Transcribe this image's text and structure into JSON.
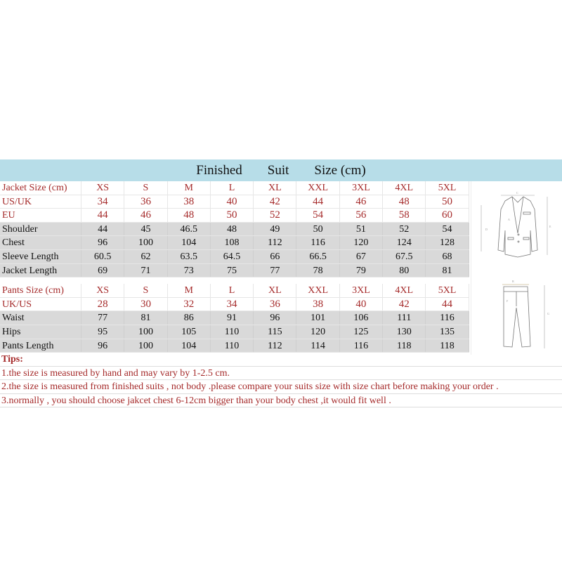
{
  "title": [
    "Finished",
    "Suit",
    "Size (cm)"
  ],
  "sizes": [
    "XS",
    "S",
    "M",
    "L",
    "XL",
    "XXL",
    "3XL",
    "4XL",
    "5XL"
  ],
  "jacket": {
    "header_label": "Jacket Size (cm)",
    "rows": [
      {
        "label": "US/UK",
        "values": [
          "34",
          "36",
          "38",
          "40",
          "42",
          "44",
          "46",
          "48",
          "50"
        ],
        "style": "red"
      },
      {
        "label": "EU",
        "values": [
          "44",
          "46",
          "48",
          "50",
          "52",
          "54",
          "56",
          "58",
          "60"
        ],
        "style": "red"
      },
      {
        "label": "Shoulder",
        "values": [
          "44",
          "45",
          "46.5",
          "48",
          "49",
          "50",
          "51",
          "52",
          "54"
        ],
        "style": "gray"
      },
      {
        "label": "Chest",
        "values": [
          "96",
          "100",
          "104",
          "108",
          "112",
          "116",
          "120",
          "124",
          "128"
        ],
        "style": "gray"
      },
      {
        "label": "Sleeve Length",
        "values": [
          "60.5",
          "62",
          "63.5",
          "64.5",
          "66",
          "66.5",
          "67",
          "67.5",
          "68"
        ],
        "style": "gray"
      },
      {
        "label": "Jacket Length",
        "values": [
          "69",
          "71",
          "73",
          "75",
          "77",
          "78",
          "79",
          "80",
          "81"
        ],
        "style": "gray"
      }
    ]
  },
  "pants": {
    "header_label": "Pants Size (cm)",
    "rows": [
      {
        "label": "UK/US",
        "values": [
          "28",
          "30",
          "32",
          "34",
          "36",
          "38",
          "40",
          "42",
          "44"
        ],
        "style": "red"
      },
      {
        "label": "Waist",
        "values": [
          "77",
          "81",
          "86",
          "91",
          "96",
          "101",
          "106",
          "111",
          "116"
        ],
        "style": "gray"
      },
      {
        "label": "Hips",
        "values": [
          "95",
          "100",
          "105",
          "110",
          "115",
          "120",
          "125",
          "130",
          "135"
        ],
        "style": "gray"
      },
      {
        "label": "Pants Length",
        "values": [
          "96",
          "100",
          "104",
          "110",
          "112",
          "114",
          "116",
          "118",
          "118"
        ],
        "style": "gray"
      }
    ]
  },
  "tips": {
    "heading": "Tips:",
    "lines": [
      "1.the size is measured by hand and may vary by 1-2.5 cm.",
      "2.the size is measured from finished suits , not body .please compare your suits size with size chart before making your order .",
      "3.normally , you should choose jakcet chest 6-12cm bigger than your body chest ,it would fit well ."
    ]
  },
  "diagram_labels": {
    "jacket": [
      "C",
      "A",
      "D",
      "E"
    ],
    "pants": [
      "B",
      "F",
      "G"
    ]
  },
  "colors": {
    "title_band": "#b7dde8",
    "red_text": "#a52a2a",
    "gray_row": "#d9d9d9"
  }
}
